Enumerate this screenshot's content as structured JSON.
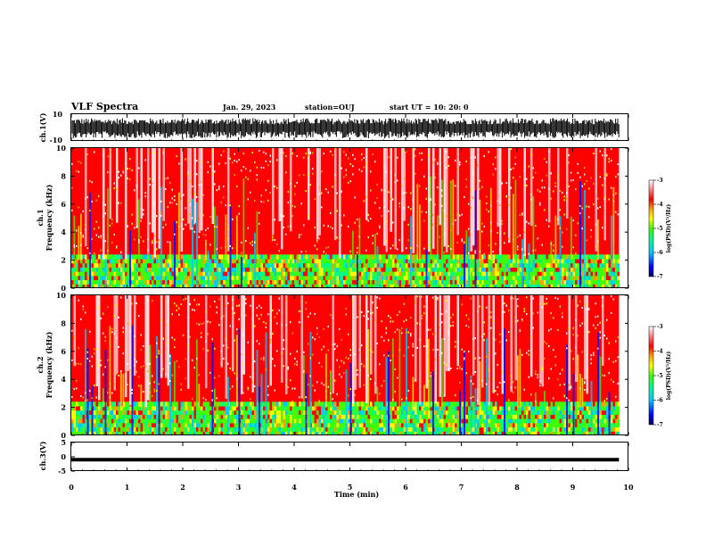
{
  "header": {
    "title": "VLF Spectra",
    "date": "Jan. 29, 2023",
    "station": "station=OUJ",
    "start": "start UT =  10: 20: 0"
  },
  "colors": {
    "spectrogram_scale": [
      "#000060",
      "#0000ff",
      "#00c8ff",
      "#00ff80",
      "#40ff00",
      "#ffff00",
      "#ffa000",
      "#ff0000",
      "#ffffff"
    ],
    "waveform": "#000000",
    "frame": "#000000"
  },
  "chart_data": [
    {
      "type": "line",
      "name": "ch1-waveform",
      "ylabel": "ch.1(V)",
      "ylim": [
        -10,
        10
      ],
      "yticks": [
        "10",
        "-10"
      ],
      "xlim": [
        0,
        10
      ],
      "envelope": {
        "top": 7,
        "bottom": -8
      }
    },
    {
      "type": "heatmap",
      "name": "ch1-spectrogram",
      "ylabel": "ch.1\nFrequency (kHz)",
      "ylim": [
        0,
        10
      ],
      "yticks": [
        "0",
        "2",
        "4",
        "6",
        "8",
        "10"
      ],
      "xlim": [
        0,
        9.83
      ],
      "colorbar": {
        "label": "log(PSD)(V²/Hz)",
        "range": [
          -7,
          -3
        ],
        "ticks": [
          "-3",
          "-4",
          "-5",
          "-6",
          "-7"
        ]
      }
    },
    {
      "type": "heatmap",
      "name": "ch2-spectrogram",
      "ylabel": "ch.2\nFrequency (kHz)",
      "ylim": [
        0,
        10
      ],
      "yticks": [
        "0",
        "2",
        "4",
        "6",
        "8",
        "10"
      ],
      "xlim": [
        0,
        9.83
      ],
      "colorbar": {
        "label": "log(PSD)(V²/Hz)",
        "range": [
          -7,
          -3
        ],
        "ticks": [
          "-3",
          "-4",
          "-5",
          "-6",
          "-7"
        ]
      }
    },
    {
      "type": "line",
      "name": "ch3-signal",
      "ylabel": "ch.3(V)",
      "ylim": [
        -5,
        5
      ],
      "yticks": [
        "5",
        "0",
        "-5"
      ],
      "series": [
        {
          "x": [
            0,
            9.83
          ],
          "y": [
            -1,
            -1
          ]
        }
      ]
    }
  ],
  "xaxis": {
    "label": "Time (min)",
    "range": [
      0,
      10
    ],
    "ticks": [
      "0",
      "1",
      "2",
      "3",
      "4",
      "5",
      "6",
      "7",
      "8",
      "9",
      "10"
    ]
  }
}
